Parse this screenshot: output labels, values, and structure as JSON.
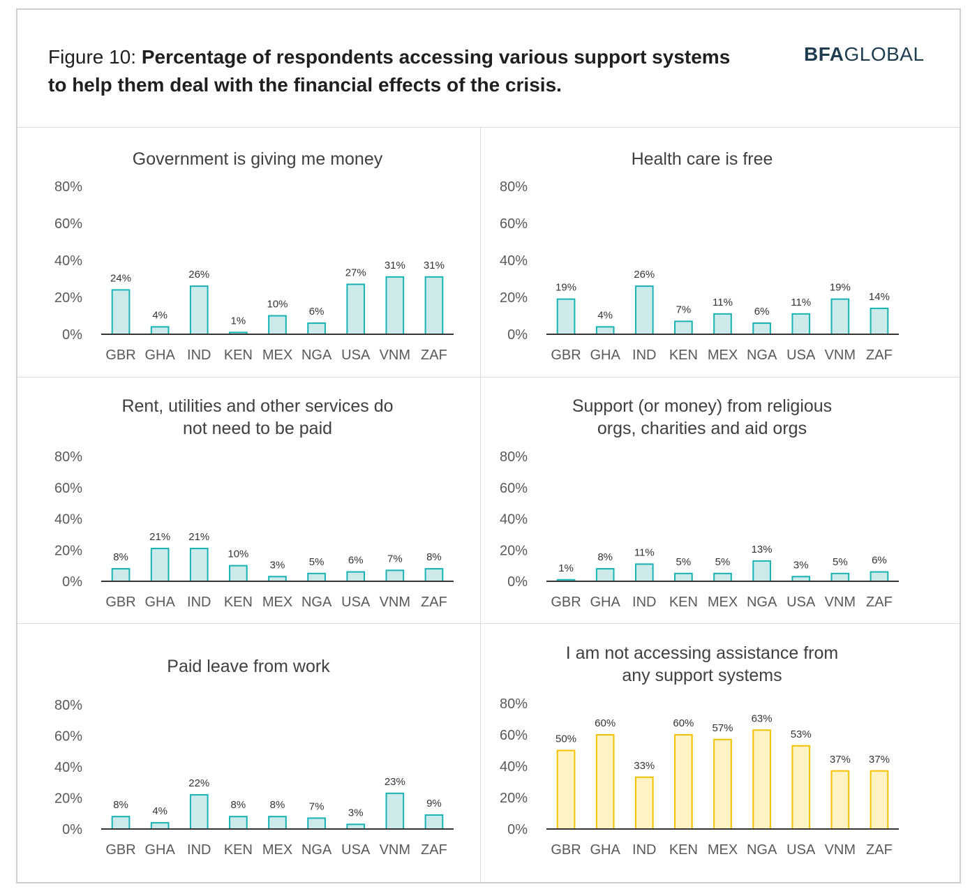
{
  "figure": {
    "label": "Figure 10:",
    "title": "Percentage of respondents accessing various support systems to help them deal with the financial effects of the crisis."
  },
  "logo": {
    "bold": "BFA",
    "light": "GLOBAL"
  },
  "colors": {
    "teal_fill": "#cdeaea",
    "teal_stroke": "#17b3b3",
    "yellow_fill": "#fff3c4",
    "yellow_stroke": "#f2c200",
    "axis": "#333333",
    "text": "#404040"
  },
  "chart_data": [
    {
      "type": "bar",
      "title": [
        "Government is giving me money"
      ],
      "categories": [
        "GBR",
        "GHA",
        "IND",
        "KEN",
        "MEX",
        "NGA",
        "USA",
        "VNM",
        "ZAF"
      ],
      "values": [
        24,
        4,
        26,
        1,
        10,
        6,
        27,
        31,
        31
      ],
      "data_labels": [
        "24%",
        "4%",
        "26%",
        "1%",
        "10%",
        "6%",
        "27%",
        "31%",
        "31%"
      ],
      "yticks": [
        "0%",
        "20%",
        "40%",
        "60%",
        "80%"
      ],
      "ylim": [
        0,
        80
      ],
      "color": "teal"
    },
    {
      "type": "bar",
      "title": [
        "Health care is free"
      ],
      "categories": [
        "GBR",
        "GHA",
        "IND",
        "KEN",
        "MEX",
        "NGA",
        "USA",
        "VNM",
        "ZAF"
      ],
      "values": [
        19,
        4,
        26,
        7,
        11,
        6,
        11,
        19,
        14
      ],
      "data_labels": [
        "19%",
        "4%",
        "26%",
        "7%",
        "11%",
        "6%",
        "11%",
        "19%",
        "14%"
      ],
      "yticks": [
        "0%",
        "20%",
        "40%",
        "60%",
        "80%"
      ],
      "ylim": [
        0,
        80
      ],
      "color": "teal"
    },
    {
      "type": "bar",
      "title": [
        "Rent, utilities and other services do",
        "not need to be paid"
      ],
      "categories": [
        "GBR",
        "GHA",
        "IND",
        "KEN",
        "MEX",
        "NGA",
        "USA",
        "VNM",
        "ZAF"
      ],
      "values": [
        8,
        21,
        21,
        10,
        3,
        5,
        6,
        7,
        8
      ],
      "data_labels": [
        "8%",
        "21%",
        "21%",
        "10%",
        "3%",
        "5%",
        "6%",
        "7%",
        "8%"
      ],
      "yticks": [
        "0%",
        "20%",
        "40%",
        "60%",
        "80%"
      ],
      "ylim": [
        0,
        80
      ],
      "color": "teal"
    },
    {
      "type": "bar",
      "title": [
        "Support (or money) from religious",
        "orgs, charities and aid orgs"
      ],
      "categories": [
        "GBR",
        "GHA",
        "IND",
        "KEN",
        "MEX",
        "NGA",
        "USA",
        "VNM",
        "ZAF"
      ],
      "values": [
        1,
        8,
        11,
        5,
        5,
        13,
        3,
        5,
        6
      ],
      "data_labels": [
        "1%",
        "8%",
        "11%",
        "5%",
        "5%",
        "13%",
        "3%",
        "5%",
        "6%"
      ],
      "yticks": [
        "0%",
        "20%",
        "40%",
        "60%",
        "80%"
      ],
      "ylim": [
        0,
        80
      ],
      "color": "teal"
    },
    {
      "type": "bar",
      "title": [
        "Paid leave from work"
      ],
      "categories": [
        "GBR",
        "GHA",
        "IND",
        "KEN",
        "MEX",
        "NGA",
        "USA",
        "VNM",
        "ZAF"
      ],
      "values": [
        8,
        4,
        22,
        8,
        8,
        7,
        3,
        23,
        9
      ],
      "data_labels": [
        "8%",
        "4%",
        "22%",
        "8%",
        "8%",
        "7%",
        "3%",
        "23%",
        "9%"
      ],
      "yticks": [
        "0%",
        "20%",
        "40%",
        "60%",
        "80%"
      ],
      "ylim": [
        0,
        80
      ],
      "color": "teal"
    },
    {
      "type": "bar",
      "title": [
        "I am not accessing assistance from",
        "any support systems"
      ],
      "categories": [
        "GBR",
        "GHA",
        "IND",
        "KEN",
        "MEX",
        "NGA",
        "USA",
        "VNM",
        "ZAF"
      ],
      "values": [
        50,
        60,
        33,
        60,
        57,
        63,
        53,
        37,
        37
      ],
      "data_labels": [
        "50%",
        "60%",
        "33%",
        "60%",
        "57%",
        "63%",
        "53%",
        "37%",
        "37%"
      ],
      "yticks": [
        "0%",
        "20%",
        "40%",
        "60%",
        "80%"
      ],
      "ylim": [
        0,
        80
      ],
      "color": "yellow"
    }
  ]
}
